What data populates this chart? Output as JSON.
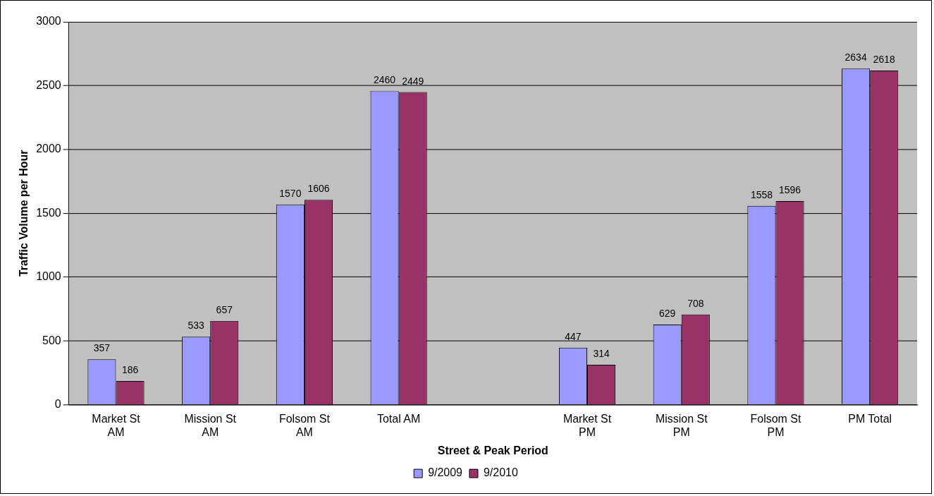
{
  "chart_data": {
    "type": "bar",
    "xlabel": "Street & Peak Period",
    "ylabel": "Traffic Volume per Hour",
    "categories": [
      "Market St AM",
      "Mission St AM",
      "Folsom St AM",
      "Total AM",
      null,
      "Market St PM",
      "Mission St PM",
      "Folsom St PM",
      "PM Total"
    ],
    "series": [
      {
        "name": "9/2009",
        "color": "#9999ff",
        "values": [
          357,
          533,
          1570,
          2460,
          null,
          447,
          629,
          1558,
          2634
        ]
      },
      {
        "name": "9/2010",
        "color": "#993366",
        "values": [
          186,
          657,
          1606,
          2449,
          null,
          314,
          708,
          1596,
          2618
        ]
      }
    ],
    "ylim": [
      0,
      3000
    ],
    "yticks": [
      0,
      500,
      1000,
      1500,
      2000,
      2500,
      3000
    ],
    "grid": "y",
    "legend": "bottom",
    "data_labels": true
  }
}
